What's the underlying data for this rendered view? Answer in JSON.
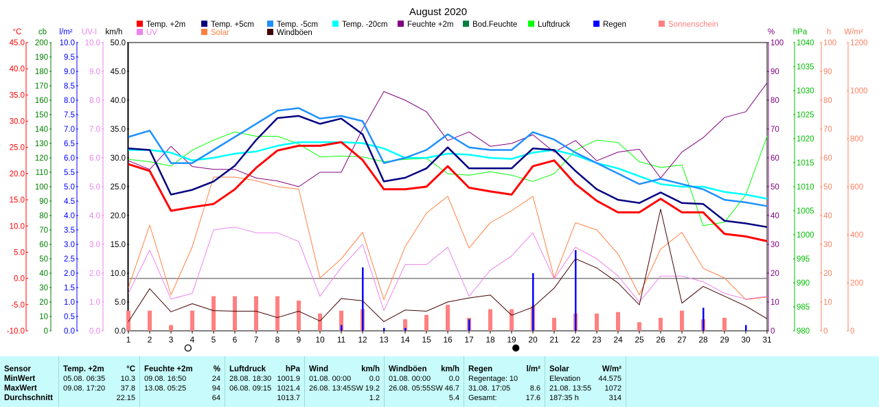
{
  "chart_data": {
    "type": "line",
    "title": "August 2020",
    "x": [
      1,
      2,
      3,
      4,
      5,
      6,
      7,
      8,
      9,
      10,
      11,
      12,
      13,
      14,
      15,
      16,
      17,
      18,
      19,
      20,
      21,
      22,
      23,
      24,
      25,
      26,
      27,
      28,
      29,
      30,
      31
    ],
    "xlim": [
      1,
      31
    ],
    "axes": [
      {
        "unit": "°C",
        "color": "#ff0000",
        "ticks": [
          "45.0",
          "40.0",
          "35.0",
          "30.0",
          "25.0",
          "20.0",
          "15.0",
          "10.0",
          "5.0",
          "0.0",
          "-5.0",
          "-10.0"
        ]
      },
      {
        "unit": "cb",
        "color": "#008000",
        "ticks": [
          "200",
          "190",
          "180",
          "170",
          "160",
          "150",
          "140",
          "130",
          "120",
          "110",
          "100",
          "90",
          "80",
          "70",
          "60",
          "50",
          "40",
          "30",
          "20",
          "10",
          "0"
        ]
      },
      {
        "unit": "l/m²",
        "color": "#0000ff",
        "ticks": [
          "10.0",
          "9.5",
          "9.0",
          "8.5",
          "8.0",
          "7.5",
          "7.0",
          "6.5",
          "6.0",
          "5.5",
          "5.0",
          "4.5",
          "4.0",
          "3.5",
          "3.0",
          "2.5",
          "2.0",
          "1.5",
          "1.0",
          "0.5",
          "0.0"
        ]
      },
      {
        "unit": "UV-I",
        "color": "#ee82ee",
        "ticks": [
          "10.0",
          "9.0",
          "8.0",
          "7.0",
          "6.0",
          "5.0",
          "4.0",
          "3.0",
          "2.0",
          "1.0",
          "0.0"
        ]
      },
      {
        "unit": "km/h",
        "color": "#000000",
        "ticks": [
          "50.0",
          "45.0",
          "40.0",
          "35.0",
          "30.0",
          "25.0",
          "20.0",
          "15.0",
          "10.0",
          "5.0",
          "0.0"
        ]
      },
      {
        "unit": "%",
        "color": "#800080",
        "ticks": [
          "100",
          "90",
          "80",
          "70",
          "60",
          "50",
          "40",
          "30",
          "20",
          "10",
          "0"
        ]
      },
      {
        "unit": "hPa",
        "color": "#00c000",
        "ticks": [
          "1040",
          "1035",
          "1030",
          "1025",
          "1020",
          "1015",
          "1010",
          "1005",
          "1000",
          "995",
          "990",
          "985",
          "980"
        ]
      },
      {
        "unit": "h",
        "color": "#ff8060",
        "ticks": [
          "100",
          "90",
          "80",
          "70",
          "60",
          "50",
          "40",
          "30",
          "20",
          "10",
          "0"
        ]
      },
      {
        "unit": "W/m²",
        "color": "#ff8060",
        "ticks": [
          "1200",
          "1000",
          "800",
          "600",
          "400",
          "200",
          "0"
        ]
      }
    ],
    "legend": [
      {
        "name": "Temp. +2m",
        "color": "#ff0000"
      },
      {
        "name": "Temp. +5cm",
        "color": "#000080"
      },
      {
        "name": "Temp. -5cm",
        "color": "#1e90ff"
      },
      {
        "name": "Temp. -20cm",
        "color": "#00ffff"
      },
      {
        "name": "Feuchte +2m",
        "color": "#800080"
      },
      {
        "name": "Bod.Feuchte",
        "color": "#008040"
      },
      {
        "name": "Luftdruck",
        "color": "#00ff00"
      },
      {
        "name": "Regen",
        "color": "#0000ff"
      },
      {
        "name": "Sonnenschein",
        "color": "#ff8080"
      },
      {
        "name": "UV",
        "color": "#ee82ee"
      },
      {
        "name": "Solar",
        "color": "#ff8040"
      },
      {
        "name": "Windböen",
        "color": "#400000"
      }
    ],
    "series": [
      {
        "name": "Temp. +2m",
        "axis": "°C",
        "values": [
          21.8,
          20.5,
          12.9,
          13.6,
          14.2,
          17.0,
          21.1,
          24.4,
          25.3,
          25.3,
          26.0,
          22.6,
          17.0,
          17.0,
          17.5,
          21.4,
          17.3,
          16.6,
          16.0,
          21.4,
          22.5,
          18.0,
          14.8,
          12.6,
          12.6,
          15.2,
          12.6,
          12.6,
          8.5,
          8.0,
          7.1
        ]
      },
      {
        "name": "Temp. +5cm",
        "axis": "°C",
        "values": [
          24.8,
          24.5,
          16.0,
          16.9,
          18.5,
          21.5,
          26.4,
          30.6,
          31.0,
          29.5,
          30.5,
          27.5,
          18.5,
          19.2,
          21.0,
          25.0,
          21.0,
          21.0,
          21.0,
          24.8,
          24.5,
          20.5,
          17.0,
          15.0,
          14.4,
          16.4,
          14.4,
          14.2,
          11.0,
          10.5,
          9.8
        ]
      },
      {
        "name": "Temp. -5cm",
        "axis": "°C",
        "values": [
          27.0,
          28.2,
          22.0,
          22.0,
          24.5,
          27.0,
          29.5,
          32.0,
          32.5,
          30.5,
          31.0,
          30.0,
          22.0,
          23.0,
          24.5,
          27.5,
          25.0,
          24.5,
          24.5,
          27.9,
          26.5,
          24.0,
          22.0,
          20.0,
          18.0,
          19.0,
          18.0,
          17.0,
          15.0,
          14.5,
          13.8
        ]
      },
      {
        "name": "Temp. -20cm",
        "axis": "°C",
        "values": [
          24.5,
          24.5,
          24.0,
          22.5,
          23.0,
          23.8,
          24.2,
          25.3,
          26.0,
          26.0,
          26.0,
          25.8,
          24.8,
          23.0,
          23.0,
          23.8,
          23.6,
          23.0,
          22.8,
          24.0,
          24.5,
          23.5,
          22.0,
          21.0,
          19.5,
          18.0,
          17.5,
          17.5,
          16.5,
          16.0,
          15.2
        ]
      },
      {
        "name": "Feuchte +2m",
        "axis": "%",
        "values": [
          59,
          56,
          64,
          57,
          56,
          56,
          53,
          52,
          50,
          55,
          55,
          70,
          83,
          80,
          76,
          66,
          69,
          64,
          65,
          68,
          62,
          66,
          59,
          62,
          63,
          53,
          62,
          67,
          74,
          76,
          86
        ]
      },
      {
        "name": "Luftdruck",
        "axis": "hPa",
        "values": [
          1015.7,
          1015.2,
          1014.3,
          1017.6,
          1019.7,
          1021.4,
          1020.5,
          1020.5,
          1018.9,
          1016.2,
          1016.4,
          1016.2,
          1015.2,
          1015.7,
          1015.9,
          1012.7,
          1012.4,
          1013.1,
          1012.4,
          1011.1,
          1012.7,
          1017.6,
          1019.7,
          1019.2,
          1015.2,
          1014.0,
          1014.5,
          1001.9,
          1002.6,
          1008.3,
          1020.5
        ]
      },
      {
        "name": "Windböen",
        "axis": "km/h",
        "values": [
          1.6,
          7.3,
          3.3,
          4.7,
          3.5,
          3.4,
          3.4,
          2.3,
          3.4,
          1.7,
          5.6,
          5.2,
          1.6,
          3.6,
          3.4,
          5.0,
          5.7,
          6.2,
          2.7,
          4.1,
          7.4,
          12.5,
          10.9,
          8.3,
          4.5,
          21.1,
          4.8,
          7.7,
          6.0,
          4.3,
          2.1
        ]
      },
      {
        "name": "UV",
        "axis": "UV-I",
        "values": [
          1.3,
          2.8,
          1.1,
          1.3,
          3.5,
          3.6,
          3.4,
          3.4,
          3.1,
          1.2,
          2.2,
          3.0,
          0.7,
          2.3,
          2.3,
          2.9,
          1.2,
          2.1,
          2.6,
          3.4,
          1.8,
          2.9,
          2.5,
          1.9,
          1.0,
          1.9,
          1.9,
          1.7,
          1.3,
          1.1,
          1.2
        ]
      },
      {
        "name": "Solar",
        "axis": "W/m²",
        "values": [
          180,
          440,
          150,
          350,
          640,
          640,
          625,
          600,
          590,
          220,
          300,
          410,
          130,
          350,
          490,
          560,
          345,
          450,
          500,
          560,
          220,
          450,
          420,
          320,
          150,
          340,
          410,
          260,
          220,
          130,
          140
        ]
      },
      {
        "name": "Sonnenschein",
        "axis": "h",
        "values": [
          7,
          7,
          2,
          7,
          12,
          12,
          12,
          12,
          10.5,
          6,
          7,
          7.5,
          0,
          4,
          5.5,
          9,
          4.5,
          7.5,
          7.5,
          8.5,
          4.5,
          6,
          6,
          6.5,
          3,
          4.5,
          7,
          4,
          4.5,
          0,
          0
        ]
      },
      {
        "name": "Regen",
        "axis": "l/m²",
        "values": [
          0,
          0,
          0,
          0,
          0,
          0,
          0,
          0,
          0,
          0,
          0.2,
          2.2,
          0.1,
          0.1,
          0,
          0,
          0.4,
          0,
          0,
          2.0,
          0,
          2.8,
          0,
          0,
          0,
          0,
          0,
          0.8,
          0,
          0.2,
          0
        ]
      }
    ],
    "zero_line": {
      "axis": "°C",
      "value": 0.0
    },
    "moon_markers": [
      {
        "x": 3.8,
        "symbol": "full-moon"
      },
      {
        "x": 19.2,
        "symbol": "new-moon"
      }
    ]
  },
  "stats": {
    "groups": [
      {
        "name": "Sensor",
        "unit": "",
        "rows": [
          "MinWert",
          "MaxWert",
          "Durchschnitt"
        ],
        "values": [
          [
            "",
            ""
          ],
          [
            "",
            ""
          ],
          [
            "",
            ""
          ]
        ]
      },
      {
        "name": "Temp. +2m",
        "unit": "°C",
        "values": [
          [
            "05.08.  06:35",
            "10.3"
          ],
          [
            "09.08.  17:20",
            "37.8"
          ],
          [
            "",
            "22.15"
          ]
        ]
      },
      {
        "name": "Feuchte +2m",
        "unit": "%",
        "values": [
          [
            "09.08.  16:50",
            "24"
          ],
          [
            "13.08.  05:25",
            "94"
          ],
          [
            "",
            "64"
          ]
        ]
      },
      {
        "name": "Luftdruck",
        "unit": "hPa",
        "values": [
          [
            "28.08.  18:30",
            "1001.9"
          ],
          [
            "06.08.  09:15",
            "1021.4"
          ],
          [
            "",
            "1013.7"
          ]
        ]
      },
      {
        "name": "Wind",
        "unit": "km/h",
        "values": [
          [
            "01.08.  00:00",
            "0.0"
          ],
          [
            "26.08.  13:45SW",
            "19.2"
          ],
          [
            "",
            "1.2"
          ]
        ]
      },
      {
        "name": "Windböen",
        "unit": "km/h",
        "values": [
          [
            "01.08.  00:00",
            "0.0"
          ],
          [
            "26.08.  05:55SW",
            "46.7"
          ],
          [
            "",
            "5.4"
          ]
        ]
      },
      {
        "name": "Regen",
        "unit": "l/m²",
        "values": [
          [
            "Regentage: 10",
            ""
          ],
          [
            "31.08.  17:05",
            "8.6"
          ],
          [
            "Gesamt:",
            "17.6"
          ]
        ]
      },
      {
        "name": "Solar",
        "unit": "W/m²",
        "values": [
          [
            "Elevation",
            "44.575"
          ],
          [
            "21.08.  13:55",
            "1072"
          ],
          [
            "187:35 h",
            "314"
          ]
        ]
      }
    ]
  }
}
